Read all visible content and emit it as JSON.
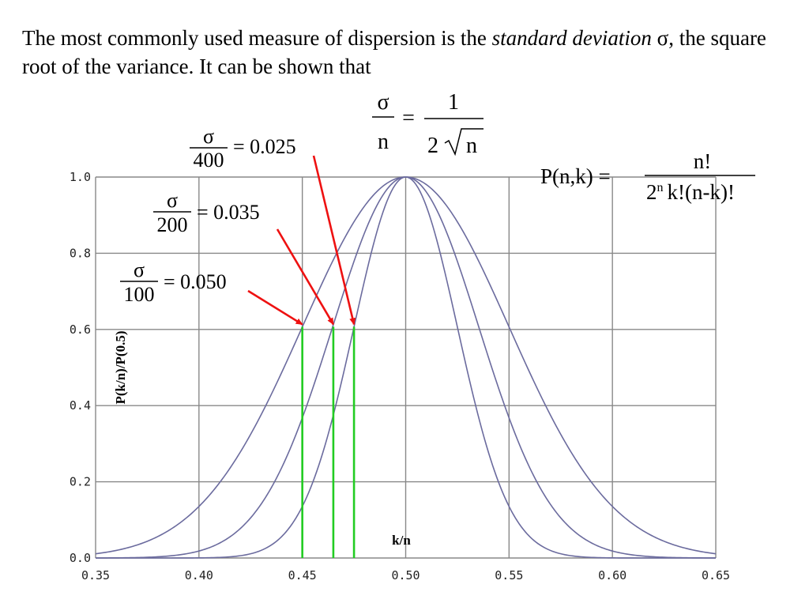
{
  "intro": {
    "part1": "The most commonly used measure of dispersion is the ",
    "italic1": "standard deviation",
    "part2": " σ, the square root of the variance. It can be shown that"
  },
  "formulas": {
    "sigma_over_n": {
      "num": "σ",
      "den": "n",
      "eq": "=",
      "rhs_num": "1",
      "rhs_den_coef": "2",
      "rhs_den_var": "n"
    },
    "binomial": {
      "lhs": "P(n,k) =",
      "num": "n!",
      "den_base": "2",
      "den_sup": "n",
      "den_rest": "k!(n-k)!"
    }
  },
  "annotations": [
    {
      "num": "σ",
      "den": "400",
      "value": "= 0.025",
      "n": 400,
      "arrow_to_x": 0.475
    },
    {
      "num": "σ",
      "den": "200",
      "value": "= 0.035",
      "n": 200,
      "arrow_to_x": 0.465
    },
    {
      "num": "σ",
      "den": "100",
      "value": "= 0.050",
      "n": 100,
      "arrow_to_x": 0.45
    }
  ],
  "colors": {
    "curve": "#6b6b9e",
    "grid": "#888888",
    "marker": "#22cc22",
    "arrow": "#ee1111"
  },
  "chart_data": {
    "type": "line",
    "title": "",
    "xlabel": "k/n",
    "ylabel": "P(k/n)/P(0.5)",
    "xlim": [
      0.35,
      0.65
    ],
    "ylim": [
      0,
      1
    ],
    "x_ticks": [
      "0.35",
      "0.40",
      "0.45",
      "0.50",
      "0.55",
      "0.60",
      "0.65"
    ],
    "y_ticks": [
      "0.0",
      "0.2",
      "0.4",
      "0.6",
      "0.8",
      "1.0"
    ],
    "grid": true,
    "series": [
      {
        "n": 100,
        "x": [
          0.35,
          0.4,
          0.45,
          0.5,
          0.55,
          0.6,
          0.65
        ],
        "y": [
          0.011,
          0.135,
          0.607,
          1.0,
          0.607,
          0.135,
          0.011
        ]
      },
      {
        "n": 200,
        "x": [
          0.35,
          0.4,
          0.45,
          0.5,
          0.55,
          0.6,
          0.65
        ],
        "y": [
          0.0001,
          0.018,
          0.368,
          1.0,
          0.368,
          0.018,
          0.0001
        ]
      },
      {
        "n": 400,
        "x": [
          0.35,
          0.4,
          0.45,
          0.5,
          0.55,
          0.6,
          0.65
        ],
        "y": [
          0.0,
          0.0003,
          0.135,
          1.0,
          0.135,
          0.0003,
          0.0
        ]
      }
    ],
    "vertical_markers": [
      {
        "x": 0.45,
        "y": 0.607
      },
      {
        "x": 0.465,
        "y": 0.607
      },
      {
        "x": 0.475,
        "y": 0.607
      }
    ]
  }
}
